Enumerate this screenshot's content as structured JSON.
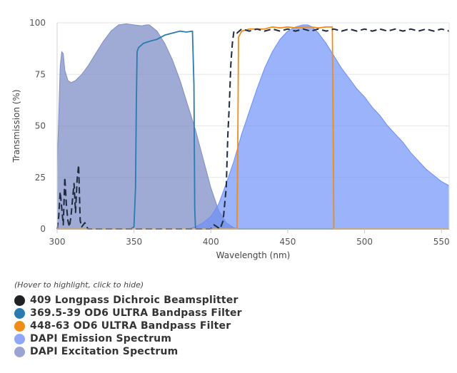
{
  "chart_data": {
    "type": "area",
    "title": "",
    "xlabel": "Wavelength (nm)",
    "ylabel": "Transmission (%)",
    "xlim": [
      300,
      555
    ],
    "ylim": [
      0,
      100
    ],
    "xticks": [
      300,
      350,
      400,
      450,
      500,
      550
    ],
    "yticks": [
      0,
      25,
      50,
      75,
      100
    ],
    "grid": "horizontal",
    "series": [
      {
        "name": "DAPI Excitation Spectrum",
        "style": "area",
        "color": "#7f8fc5",
        "points": [
          [
            300,
            29
          ],
          [
            302,
            79
          ],
          [
            303,
            86
          ],
          [
            304,
            85
          ],
          [
            305,
            77
          ],
          [
            307,
            72
          ],
          [
            309,
            71
          ],
          [
            312,
            72
          ],
          [
            316,
            75
          ],
          [
            320,
            79
          ],
          [
            325,
            85
          ],
          [
            330,
            91
          ],
          [
            335,
            96
          ],
          [
            340,
            99
          ],
          [
            345,
            99.5
          ],
          [
            350,
            99
          ],
          [
            355,
            98.5
          ],
          [
            358,
            99
          ],
          [
            360,
            99
          ],
          [
            365,
            96
          ],
          [
            370,
            90
          ],
          [
            375,
            82
          ],
          [
            380,
            72
          ],
          [
            385,
            60
          ],
          [
            390,
            48
          ],
          [
            395,
            34
          ],
          [
            400,
            20
          ],
          [
            405,
            9
          ],
          [
            410,
            3
          ],
          [
            415,
            0.5
          ],
          [
            420,
            0
          ]
        ]
      },
      {
        "name": "DAPI Emission Spectrum",
        "style": "area",
        "color": "#6c8ff7",
        "points": [
          [
            385,
            0
          ],
          [
            390,
            1
          ],
          [
            395,
            3
          ],
          [
            400,
            6
          ],
          [
            405,
            12
          ],
          [
            410,
            22
          ],
          [
            415,
            33
          ],
          [
            420,
            46
          ],
          [
            425,
            57
          ],
          [
            430,
            68
          ],
          [
            435,
            78
          ],
          [
            440,
            86
          ],
          [
            445,
            92
          ],
          [
            450,
            96
          ],
          [
            455,
            98
          ],
          [
            460,
            99
          ],
          [
            463,
            99
          ],
          [
            466,
            98
          ],
          [
            470,
            95
          ],
          [
            475,
            90
          ],
          [
            480,
            84
          ],
          [
            485,
            78
          ],
          [
            490,
            73
          ],
          [
            495,
            68
          ],
          [
            500,
            64
          ],
          [
            505,
            59
          ],
          [
            510,
            55
          ],
          [
            515,
            50
          ],
          [
            520,
            46
          ],
          [
            525,
            42
          ],
          [
            530,
            37
          ],
          [
            535,
            33
          ],
          [
            540,
            29
          ],
          [
            545,
            26
          ],
          [
            550,
            23
          ],
          [
            555,
            21
          ]
        ]
      },
      {
        "name": "369.5-39 OD6 ULTRA Bandpass Filter",
        "style": "line",
        "color": "#2a7bb0",
        "points": [
          [
            300,
            0
          ],
          [
            348,
            0
          ],
          [
            350,
            1
          ],
          [
            351,
            20
          ],
          [
            351.5,
            60
          ],
          [
            352,
            86
          ],
          [
            353,
            88
          ],
          [
            356,
            90
          ],
          [
            360,
            91
          ],
          [
            365,
            92
          ],
          [
            370,
            94
          ],
          [
            375,
            95
          ],
          [
            380,
            96
          ],
          [
            384,
            95.5
          ],
          [
            388,
            96
          ],
          [
            389,
            70
          ],
          [
            389.5,
            10
          ],
          [
            390,
            0
          ],
          [
            555,
            0
          ]
        ]
      },
      {
        "name": "448-63 OD6 ULTRA Bandpass Filter",
        "style": "line",
        "color": "#f08c18",
        "points": [
          [
            300,
            0
          ],
          [
            417,
            0
          ],
          [
            417.5,
            40
          ],
          [
            418,
            93
          ],
          [
            420,
            96
          ],
          [
            425,
            97
          ],
          [
            430,
            97
          ],
          [
            435,
            97
          ],
          [
            440,
            98
          ],
          [
            445,
            97.5
          ],
          [
            450,
            98
          ],
          [
            455,
            97.5
          ],
          [
            460,
            98
          ],
          [
            465,
            98
          ],
          [
            470,
            97.5
          ],
          [
            475,
            98
          ],
          [
            479,
            98
          ],
          [
            479.5,
            50
          ],
          [
            480,
            0
          ],
          [
            555,
            0
          ]
        ]
      },
      {
        "name": "409 Longpass Dichroic Beamsplitter",
        "style": "dashed",
        "color": "#202a3e",
        "points": [
          [
            300,
            0
          ],
          [
            301,
            6
          ],
          [
            302,
            18
          ],
          [
            303,
            10
          ],
          [
            304,
            2
          ],
          [
            305,
            25
          ],
          [
            306,
            12
          ],
          [
            307,
            4
          ],
          [
            308,
            1
          ],
          [
            309,
            6
          ],
          [
            310,
            14
          ],
          [
            311,
            22
          ],
          [
            312,
            8
          ],
          [
            313,
            24
          ],
          [
            314,
            31
          ],
          [
            315,
            4
          ],
          [
            316,
            1
          ],
          [
            318,
            3
          ],
          [
            320,
            0
          ],
          [
            400,
            0
          ],
          [
            402,
            2
          ],
          [
            404,
            1
          ],
          [
            406,
            0
          ],
          [
            408,
            4
          ],
          [
            410,
            20
          ],
          [
            411,
            45
          ],
          [
            412,
            60
          ],
          [
            413,
            80
          ],
          [
            414,
            90
          ],
          [
            415,
            96
          ],
          [
            417,
            95
          ],
          [
            420,
            97
          ],
          [
            425,
            96
          ],
          [
            430,
            97
          ],
          [
            435,
            96
          ],
          [
            440,
            97
          ],
          [
            445,
            96
          ],
          [
            450,
            97
          ],
          [
            455,
            96
          ],
          [
            460,
            97
          ],
          [
            465,
            96
          ],
          [
            470,
            97
          ],
          [
            475,
            96
          ],
          [
            480,
            97
          ],
          [
            485,
            96
          ],
          [
            490,
            97
          ],
          [
            495,
            96
          ],
          [
            500,
            97
          ],
          [
            505,
            96
          ],
          [
            510,
            97
          ],
          [
            515,
            96
          ],
          [
            520,
            97
          ],
          [
            525,
            96
          ],
          [
            530,
            97
          ],
          [
            535,
            96
          ],
          [
            540,
            97
          ],
          [
            545,
            96
          ],
          [
            550,
            97
          ],
          [
            555,
            96
          ]
        ]
      }
    ],
    "legend_hint": "(Hover to highlight, click to hide)",
    "legend": [
      {
        "label": "409 Longpass Dichroic Beamsplitter",
        "color": "#202124"
      },
      {
        "label": "369.5-39 OD6 ULTRA Bandpass Filter",
        "color": "#2a7bb0"
      },
      {
        "label": "448-63 OD6 ULTRA Bandpass Filter",
        "color": "#f08c18"
      },
      {
        "label": "DAPI Emission Spectrum",
        "color": "#8fa7f6"
      },
      {
        "label": "DAPI Excitation Spectrum",
        "color": "#99a4d2"
      }
    ]
  }
}
